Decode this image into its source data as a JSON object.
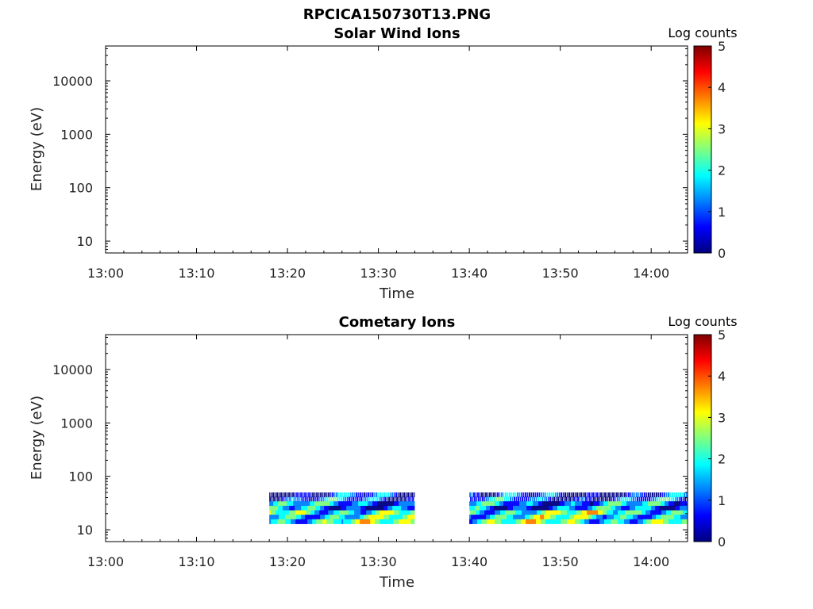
{
  "figure": {
    "main_title": "RPCICA150730T13.PNG"
  },
  "colormap": [
    "#00007f",
    "#0000ff",
    "#007fff",
    "#00ffff",
    "#7fff7f",
    "#ffff00",
    "#ff7f00",
    "#ff0000",
    "#7f0000"
  ],
  "chart_data": [
    {
      "type": "heatmap",
      "title": "Solar Wind Ions",
      "xlabel": "Time",
      "ylabel": "Energy (eV)",
      "x_ticks": [
        "13:00",
        "13:10",
        "13:20",
        "13:30",
        "13:40",
        "13:50",
        "14:00"
      ],
      "xlim_minutes": [
        0,
        64
      ],
      "y_scale": "log",
      "y_ticks": [
        "10",
        "100",
        "1000",
        "10000"
      ],
      "ylim": [
        6,
        45000
      ],
      "colorbar": {
        "title": "Log counts",
        "range": [
          0,
          5
        ],
        "ticks": [
          "0",
          "1",
          "2",
          "3",
          "4",
          "5"
        ]
      },
      "segments": []
    },
    {
      "type": "heatmap",
      "title": "Cometary Ions",
      "xlabel": "Time",
      "ylabel": "Energy (eV)",
      "x_ticks": [
        "13:00",
        "13:10",
        "13:20",
        "13:30",
        "13:40",
        "13:50",
        "14:00"
      ],
      "xlim_minutes": [
        0,
        64
      ],
      "y_scale": "log",
      "y_ticks": [
        "10",
        "100",
        "1000",
        "10000"
      ],
      "ylim": [
        6,
        45000
      ],
      "colorbar": {
        "title": "Log counts",
        "range": [
          0,
          5
        ],
        "ticks": [
          "0",
          "1",
          "2",
          "3",
          "4",
          "5"
        ]
      },
      "segments": [
        {
          "start": "13:18",
          "end": "13:34",
          "energy_min_eV": 13,
          "energy_max_eV": 50
        },
        {
          "start": "13:40",
          "end": "14:04",
          "energy_min_eV": 13,
          "energy_max_eV": 50
        }
      ],
      "energy_bands": [
        {
          "energy_eV": 45,
          "log_counts": 0.5
        },
        {
          "energy_eV": 38,
          "log_counts": 0.8
        },
        {
          "energy_eV": 32,
          "log_counts": 1.2
        },
        {
          "energy_eV": 27,
          "log_counts": 1.1
        },
        {
          "energy_eV": 22,
          "log_counts": 2.2
        },
        {
          "energy_eV": 18,
          "log_counts": 2.0
        },
        {
          "energy_eV": 15,
          "log_counts": 2.1
        }
      ]
    }
  ]
}
